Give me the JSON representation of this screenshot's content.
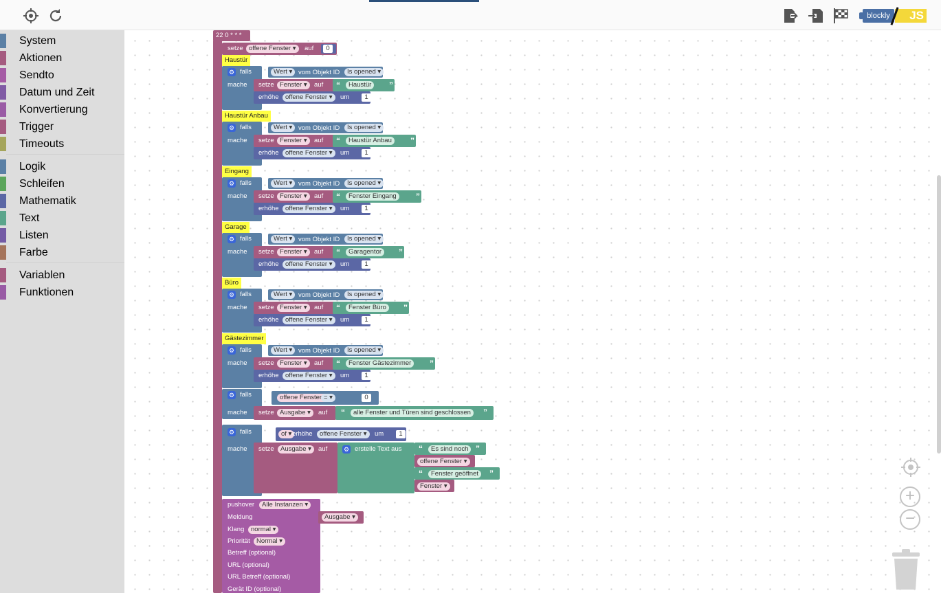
{
  "toolbar": {
    "left_icons": [
      "locate-icon",
      "refresh-icon"
    ],
    "right_icons": [
      "export-icon",
      "import-icon",
      "checkered-flag-icon"
    ],
    "toggle": {
      "blockly": "blockly",
      "js": "JS"
    }
  },
  "categories": [
    {
      "label": "System",
      "color": "#5b80a5"
    },
    {
      "label": "Aktionen",
      "color": "#a55b80"
    },
    {
      "label": "Sendto",
      "color": "#a55ba5"
    },
    {
      "label": "Datum und Zeit",
      "color": "#805ba5"
    },
    {
      "label": "Konvertierung",
      "color": "#9a5ba5"
    },
    {
      "label": "Trigger",
      "color": "#a55b80"
    },
    {
      "label": "Timeouts",
      "color": "#a5a55b"
    },
    {
      "label": "Logik",
      "color": "#5b80a5"
    },
    {
      "label": "Schleifen",
      "color": "#5ba55b"
    },
    {
      "label": "Mathematik",
      "color": "#5b67a5"
    },
    {
      "label": "Text",
      "color": "#5ba58c"
    },
    {
      "label": "Listen",
      "color": "#745ba5"
    },
    {
      "label": "Farbe",
      "color": "#a5745b"
    },
    {
      "label": "Variablen",
      "color": "#a55b80"
    },
    {
      "label": "Funktionen",
      "color": "#995ba5"
    }
  ],
  "program": {
    "schedule": "22 0 * * *",
    "init": {
      "setze": "setze",
      "var": "offene Fenster",
      "auf": "auf",
      "value": "0"
    },
    "kw": {
      "falls": "falls",
      "mache": "mache",
      "setze": "setze",
      "auf": "auf",
      "erhoehe": "erhöhe",
      "um": "um",
      "wert": "Wert",
      "vom_objekt": "vom Objekt ID",
      "fenster": "Fenster",
      "offene": "offene Fenster",
      "one": "1"
    },
    "rooms": [
      {
        "comment": "Haustür",
        "state": "Is opened",
        "text": "Haustür"
      },
      {
        "comment": "Haustür Anbau",
        "state": "Is opened",
        "text": "Haustür Anbau"
      },
      {
        "comment": "Eingang",
        "state": "Is opened",
        "text": "Fenster Eingang"
      },
      {
        "comment": "Garage",
        "state": "Is opened",
        "text": "Garagentor"
      },
      {
        "comment": "Büro",
        "state": "Is opened",
        "text": "Fenster Büro"
      },
      {
        "comment": "Gästezimmer",
        "state": "Is opened",
        "text": "Fenster Gästezimmer"
      }
    ],
    "check": {
      "var": "offene Fenster",
      "op": "=",
      "value": "0",
      "target": "Ausgabe",
      "text": "alle Fenster und Türen sind geschlossen"
    },
    "else_if": {
      "prefix": "of",
      "target": "Ausgabe",
      "create": "erstelle Text aus",
      "part1": "Es sind noch",
      "part2": "offene Fenster",
      "part3": "Fenster geöffnet",
      "part4": "Fenster"
    },
    "pushover": {
      "label": "pushover",
      "instance": "Alle Instanzen",
      "meldung": "Meldung",
      "meldung_value": "Ausgabe",
      "klang": "Klang",
      "klang_value": "normal",
      "prio": "Priorität",
      "prio_value": "Normal",
      "betreff": "Betreff (optional)",
      "url": "URL (optional)",
      "url_betreff": "URL Betreff (optional)",
      "geraet": "Gerät ID (optional)"
    }
  },
  "zoom": {
    "in": "+",
    "out": "−"
  }
}
